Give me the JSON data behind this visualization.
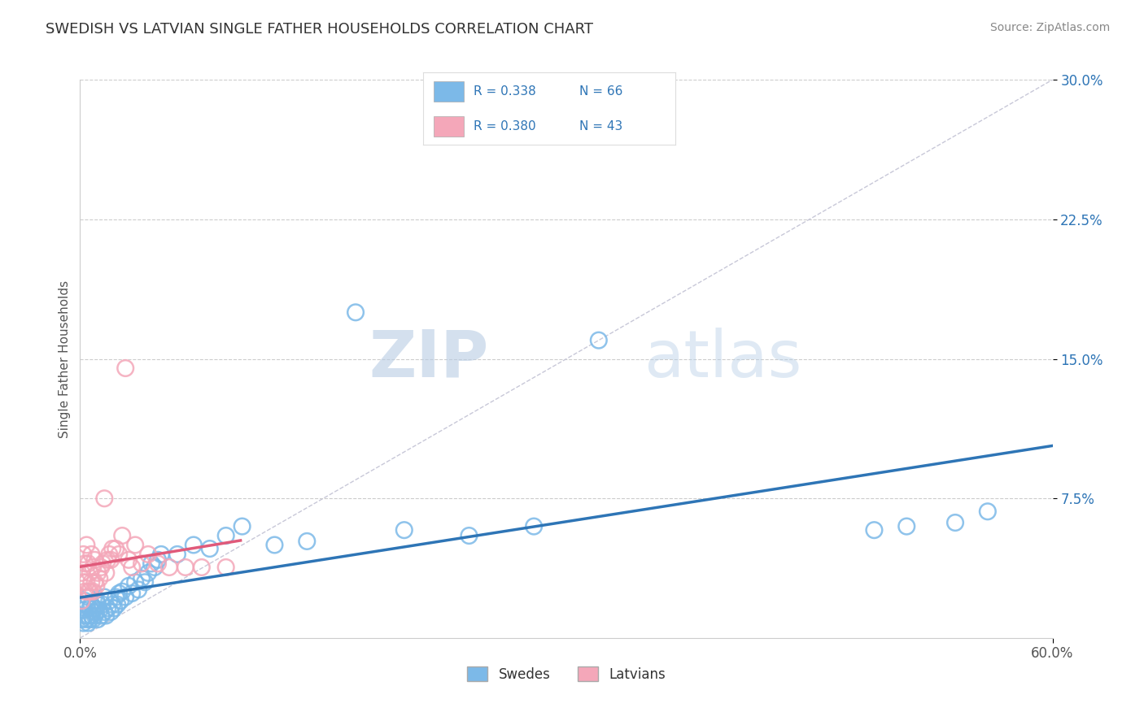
{
  "title": "SWEDISH VS LATVIAN SINGLE FATHER HOUSEHOLDS CORRELATION CHART",
  "source": "Source: ZipAtlas.com",
  "xlabel": "",
  "ylabel": "Single Father Households",
  "xlim": [
    0.0,
    0.6
  ],
  "ylim": [
    0.0,
    0.3
  ],
  "xticks": [
    0.0,
    0.6
  ],
  "xticklabels": [
    "0.0%",
    "60.0%"
  ],
  "ytick_positions": [
    0.075,
    0.15,
    0.225,
    0.3
  ],
  "ytick_labels": [
    "7.5%",
    "15.0%",
    "22.5%",
    "30.0%"
  ],
  "swedes_color": "#7cb9e8",
  "latvians_color": "#f4a7b9",
  "swedes_line_color": "#2e75b6",
  "latvians_line_color": "#e05a7a",
  "R_swedes": 0.338,
  "N_swedes": 66,
  "R_latvians": 0.38,
  "N_latvians": 43,
  "legend_label_swedes": "Swedes",
  "legend_label_latvians": "Latvians",
  "watermark_zip": "ZIP",
  "watermark_atlas": "atlas",
  "background_color": "#ffffff",
  "grid_color": "#cccccc",
  "ref_line_color": "#c8c8d8",
  "swedes_x": [
    0.001,
    0.002,
    0.002,
    0.003,
    0.003,
    0.004,
    0.004,
    0.005,
    0.005,
    0.005,
    0.006,
    0.006,
    0.007,
    0.007,
    0.008,
    0.008,
    0.009,
    0.009,
    0.01,
    0.01,
    0.011,
    0.011,
    0.012,
    0.013,
    0.014,
    0.015,
    0.015,
    0.016,
    0.017,
    0.018,
    0.019,
    0.02,
    0.021,
    0.022,
    0.023,
    0.024,
    0.025,
    0.026,
    0.028,
    0.03,
    0.032,
    0.034,
    0.036,
    0.038,
    0.04,
    0.042,
    0.044,
    0.046,
    0.048,
    0.05,
    0.06,
    0.07,
    0.08,
    0.09,
    0.1,
    0.12,
    0.14,
    0.17,
    0.2,
    0.24,
    0.28,
    0.32,
    0.49,
    0.51,
    0.54,
    0.56
  ],
  "swedes_y": [
    0.01,
    0.008,
    0.015,
    0.012,
    0.02,
    0.01,
    0.018,
    0.008,
    0.012,
    0.022,
    0.01,
    0.016,
    0.012,
    0.018,
    0.01,
    0.014,
    0.012,
    0.016,
    0.014,
    0.02,
    0.01,
    0.018,
    0.015,
    0.012,
    0.018,
    0.014,
    0.022,
    0.012,
    0.016,
    0.02,
    0.014,
    0.018,
    0.016,
    0.022,
    0.018,
    0.024,
    0.02,
    0.025,
    0.022,
    0.028,
    0.024,
    0.03,
    0.026,
    0.032,
    0.03,
    0.035,
    0.04,
    0.038,
    0.042,
    0.045,
    0.045,
    0.05,
    0.048,
    0.055,
    0.06,
    0.05,
    0.052,
    0.175,
    0.058,
    0.055,
    0.06,
    0.16,
    0.058,
    0.06,
    0.062,
    0.068
  ],
  "latvians_x": [
    0.001,
    0.001,
    0.002,
    0.002,
    0.003,
    0.003,
    0.004,
    0.004,
    0.005,
    0.005,
    0.006,
    0.006,
    0.007,
    0.007,
    0.008,
    0.008,
    0.009,
    0.009,
    0.01,
    0.011,
    0.012,
    0.013,
    0.014,
    0.015,
    0.016,
    0.017,
    0.018,
    0.019,
    0.02,
    0.022,
    0.024,
    0.026,
    0.028,
    0.03,
    0.032,
    0.034,
    0.038,
    0.042,
    0.048,
    0.055,
    0.065,
    0.075,
    0.09
  ],
  "latvians_y": [
    0.02,
    0.035,
    0.03,
    0.045,
    0.025,
    0.04,
    0.03,
    0.05,
    0.025,
    0.04,
    0.025,
    0.035,
    0.03,
    0.045,
    0.025,
    0.038,
    0.03,
    0.042,
    0.028,
    0.035,
    0.032,
    0.038,
    0.04,
    0.075,
    0.035,
    0.042,
    0.045,
    0.042,
    0.048,
    0.048,
    0.045,
    0.055,
    0.145,
    0.042,
    0.038,
    0.05,
    0.04,
    0.045,
    0.04,
    0.038,
    0.038,
    0.038,
    0.038
  ]
}
